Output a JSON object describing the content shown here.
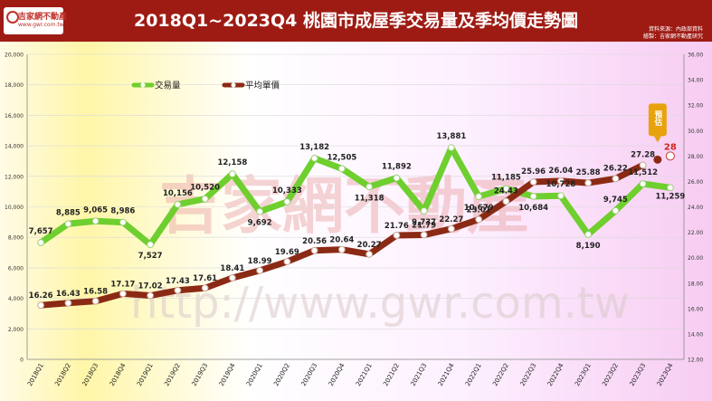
{
  "header": {
    "title": "2018Q1~2023Q4 桃園市成屋季交易量及季均價走勢圖",
    "logo_name": "吉家網不動產",
    "logo_url": "www.gwr.com.tw",
    "source_line1": "資料來源：內政部資料",
    "source_line2": "繪製：吉家網不動產研究"
  },
  "watermark": {
    "text_zh": "吉家網不動產",
    "text_url": "http://www.gwr.com.tw"
  },
  "colors": {
    "volume": "#6ecf2e",
    "price": "#8b2a14",
    "header": "#9e1b14",
    "forecast": "#e8a20e"
  },
  "chart_data": {
    "type": "line",
    "categories": [
      "2018Q1",
      "2018Q2",
      "2018Q3",
      "2018Q4",
      "2019Q1",
      "2019Q2",
      "2019Q3",
      "2019Q4",
      "2020Q1",
      "2020Q2",
      "2020Q3",
      "2020Q4",
      "2021Q1",
      "2021Q2",
      "2021Q3",
      "2021Q4",
      "2022Q1",
      "2022Q2",
      "2022Q3",
      "2022Q4",
      "2023Q1",
      "2023Q2",
      "2023Q3",
      "2023Q4"
    ],
    "y_left": {
      "min": 0,
      "max": 20000,
      "ticks": [
        "0",
        "2,000",
        "4,000",
        "6,000",
        "8,000",
        "10,000",
        "12,000",
        "14,000",
        "16,000",
        "18,000",
        "20,000"
      ]
    },
    "y_right": {
      "min": 12,
      "max": 36,
      "ticks": [
        "12.00",
        "14.00",
        "16.00",
        "18.00",
        "20.00",
        "22.00",
        "24.00",
        "26.00",
        "28.00",
        "30.00",
        "32.00",
        "34.00",
        "36.00"
      ]
    },
    "series": [
      {
        "name": "交易量",
        "axis": "left",
        "values": [
          7657,
          8885,
          9065,
          8986,
          7527,
          10156,
          10520,
          12158,
          9692,
          10333,
          13182,
          12505,
          11318,
          11892,
          9737,
          13881,
          10679,
          11185,
          10684,
          10728,
          8190,
          9745,
          11512,
          11259
        ],
        "labels": [
          "7,657",
          "8,885",
          "9,065",
          "8,986",
          "7,527",
          "10,156",
          "10,520",
          "12,158",
          "9,692",
          "10,333",
          "13,182",
          "12,505",
          "11,318",
          "11,892",
          "9,737",
          "13,881",
          "10,679",
          "11,185",
          "10,684",
          "10,728",
          "8,190",
          "9,745",
          "11,512",
          "11,259"
        ]
      },
      {
        "name": "平均單價",
        "axis": "right",
        "values": [
          16.26,
          16.43,
          16.58,
          17.17,
          17.02,
          17.43,
          17.61,
          18.41,
          18.99,
          19.69,
          20.56,
          20.64,
          20.27,
          21.76,
          21.79,
          22.27,
          23.01,
          24.43,
          25.96,
          26.04,
          25.88,
          26.22,
          27.28,
          null
        ],
        "labels": [
          "16.26",
          "16.43",
          "16.58",
          "17.17",
          "17.02",
          "17.43",
          "17.61",
          "18.41",
          "18.99",
          "19.69",
          "20.56",
          "20.64",
          "20.27",
          "21.76",
          "21.79",
          "22.27",
          "23.01",
          "24.43",
          "25.96",
          "26.04",
          "25.88",
          "26.22",
          "27.28",
          ""
        ]
      }
    ],
    "forecast": {
      "label": "預估",
      "value": 28,
      "value_label": "28",
      "category": "2023Q4"
    },
    "legend_placement": "top-left",
    "grid": true
  }
}
